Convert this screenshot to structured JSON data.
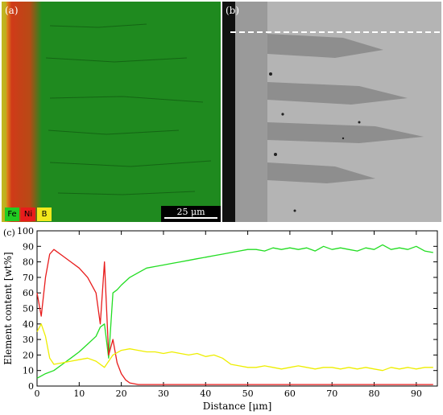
{
  "panel_a": {
    "label": "(a)",
    "legend": [
      {
        "symbol": "Fe",
        "color": "#22cc22"
      },
      {
        "symbol": "Ni",
        "color": "#e81c1c"
      },
      {
        "symbol": "B",
        "color": "#f2e81c"
      }
    ],
    "scale_bar": "25 μm",
    "colors": {
      "matrix": "#1f8a1f",
      "edge": "#c8441a"
    }
  },
  "panel_b": {
    "label": "(b)",
    "colors": {
      "light": "#b4b4b4",
      "dark": "#8e8e8e",
      "mount": "#111111"
    }
  },
  "panel_c": {
    "label": "(c)"
  },
  "chart_data": {
    "type": "line",
    "xlabel": "Distance [μm]",
    "ylabel": "Element content [wt%]",
    "xlim": [
      0,
      95
    ],
    "ylim": [
      0,
      100
    ],
    "xticks": [
      0,
      10,
      20,
      30,
      40,
      50,
      60,
      70,
      80,
      90
    ],
    "yticks": [
      0,
      10,
      20,
      30,
      40,
      50,
      60,
      70,
      80,
      90,
      100
    ],
    "grid": false,
    "series": [
      {
        "element": "Fe",
        "color": "#22dd22",
        "x": [
          0,
          2,
          4,
          6,
          8,
          10,
          12,
          14,
          15,
          16,
          17,
          18,
          19,
          20,
          22,
          24,
          26,
          28,
          30,
          32,
          34,
          36,
          38,
          40,
          42,
          44,
          46,
          48,
          50,
          52,
          54,
          56,
          58,
          60,
          62,
          64,
          66,
          68,
          70,
          72,
          74,
          76,
          78,
          80,
          82,
          84,
          86,
          88,
          90,
          92,
          94
        ],
        "y": [
          5,
          8,
          10,
          14,
          18,
          22,
          27,
          32,
          38,
          40,
          18,
          60,
          62,
          65,
          70,
          73,
          76,
          77,
          78,
          79,
          80,
          81,
          82,
          83,
          84,
          85,
          86,
          87,
          88,
          88,
          87,
          89,
          88,
          89,
          88,
          89,
          87,
          90,
          88,
          89,
          88,
          87,
          89,
          88,
          91,
          88,
          89,
          88,
          90,
          87,
          86
        ]
      },
      {
        "element": "Ni",
        "color": "#e81c1c",
        "x": [
          0,
          1,
          2,
          3,
          4,
          6,
          8,
          10,
          12,
          14,
          15,
          16,
          17,
          18,
          19,
          20,
          21,
          22,
          24,
          26,
          30,
          35,
          40,
          50,
          60,
          70,
          80,
          90,
          94
        ],
        "y": [
          60,
          45,
          70,
          85,
          88,
          84,
          80,
          76,
          70,
          60,
          40,
          80,
          20,
          30,
          15,
          8,
          4,
          2,
          1,
          1,
          1,
          1,
          1,
          1,
          1,
          1,
          1,
          1,
          1
        ]
      },
      {
        "element": "B",
        "color": "#eeee00",
        "x": [
          0,
          1,
          2,
          3,
          4,
          6,
          8,
          10,
          12,
          14,
          16,
          18,
          20,
          22,
          24,
          26,
          28,
          30,
          32,
          34,
          36,
          38,
          40,
          42,
          44,
          46,
          48,
          50,
          52,
          54,
          56,
          58,
          60,
          62,
          64,
          66,
          68,
          70,
          72,
          74,
          76,
          78,
          80,
          82,
          84,
          86,
          88,
          90,
          92,
          94
        ],
        "y": [
          35,
          40,
          32,
          18,
          14,
          15,
          16,
          17,
          18,
          16,
          12,
          20,
          23,
          24,
          23,
          22,
          22,
          21,
          22,
          21,
          20,
          21,
          19,
          20,
          18,
          14,
          13,
          12,
          12,
          13,
          12,
          11,
          12,
          13,
          12,
          11,
          12,
          12,
          11,
          12,
          11,
          12,
          11,
          10,
          12,
          11,
          12,
          11,
          12,
          12
        ]
      }
    ]
  }
}
